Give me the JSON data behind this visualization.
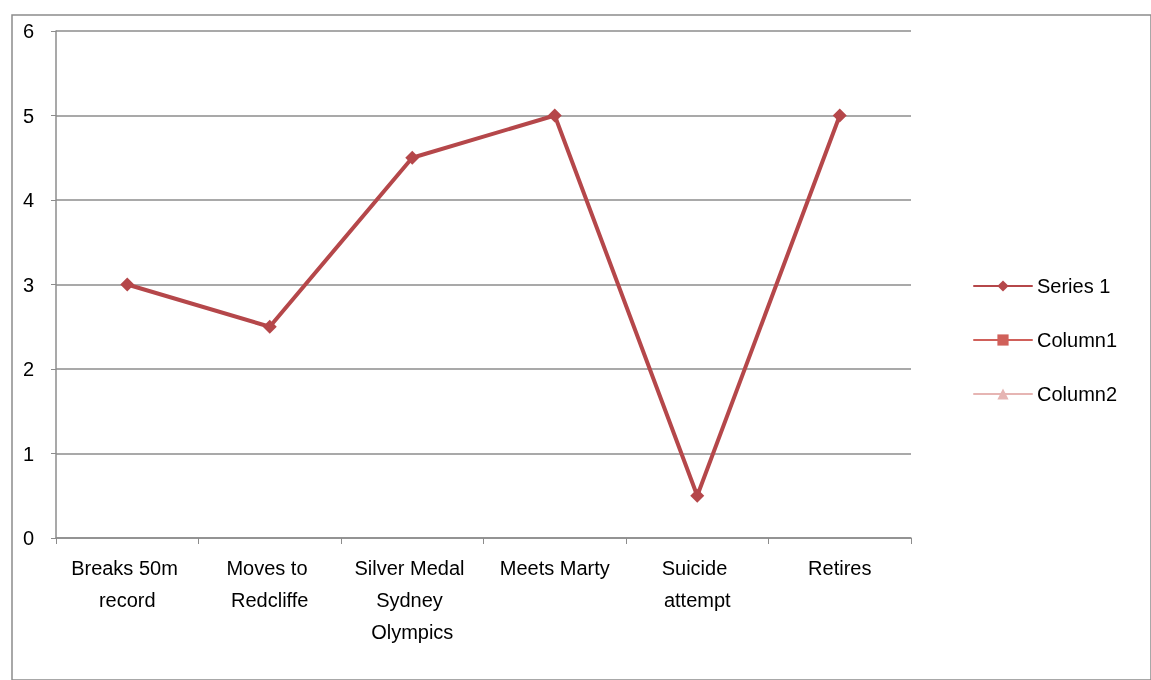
{
  "chart_data": {
    "type": "line",
    "categories": [
      "Breaks 50m record",
      "Moves to Redcliffe",
      "Silver Medal Sydney Olympics",
      "Meets Marty",
      "Suicide attempt",
      "Retires"
    ],
    "series": [
      {
        "name": "Series 1",
        "color": "#b5474a",
        "marker": "diamond",
        "values": [
          3,
          2.5,
          4.5,
          5,
          0.5,
          5
        ]
      },
      {
        "name": "Column1",
        "color": "#d0605a",
        "marker": "square",
        "values": [
          null,
          null,
          null,
          null,
          null,
          null
        ]
      },
      {
        "name": "Column2",
        "color": "#e6b5b3",
        "marker": "triangle",
        "values": [
          null,
          null,
          null,
          null,
          null,
          null
        ]
      }
    ],
    "ylim": [
      0,
      6
    ],
    "yticks": [
      0,
      1,
      2,
      3,
      4,
      5,
      6
    ],
    "grid": "y",
    "legend": "right",
    "line_style": "solid"
  }
}
